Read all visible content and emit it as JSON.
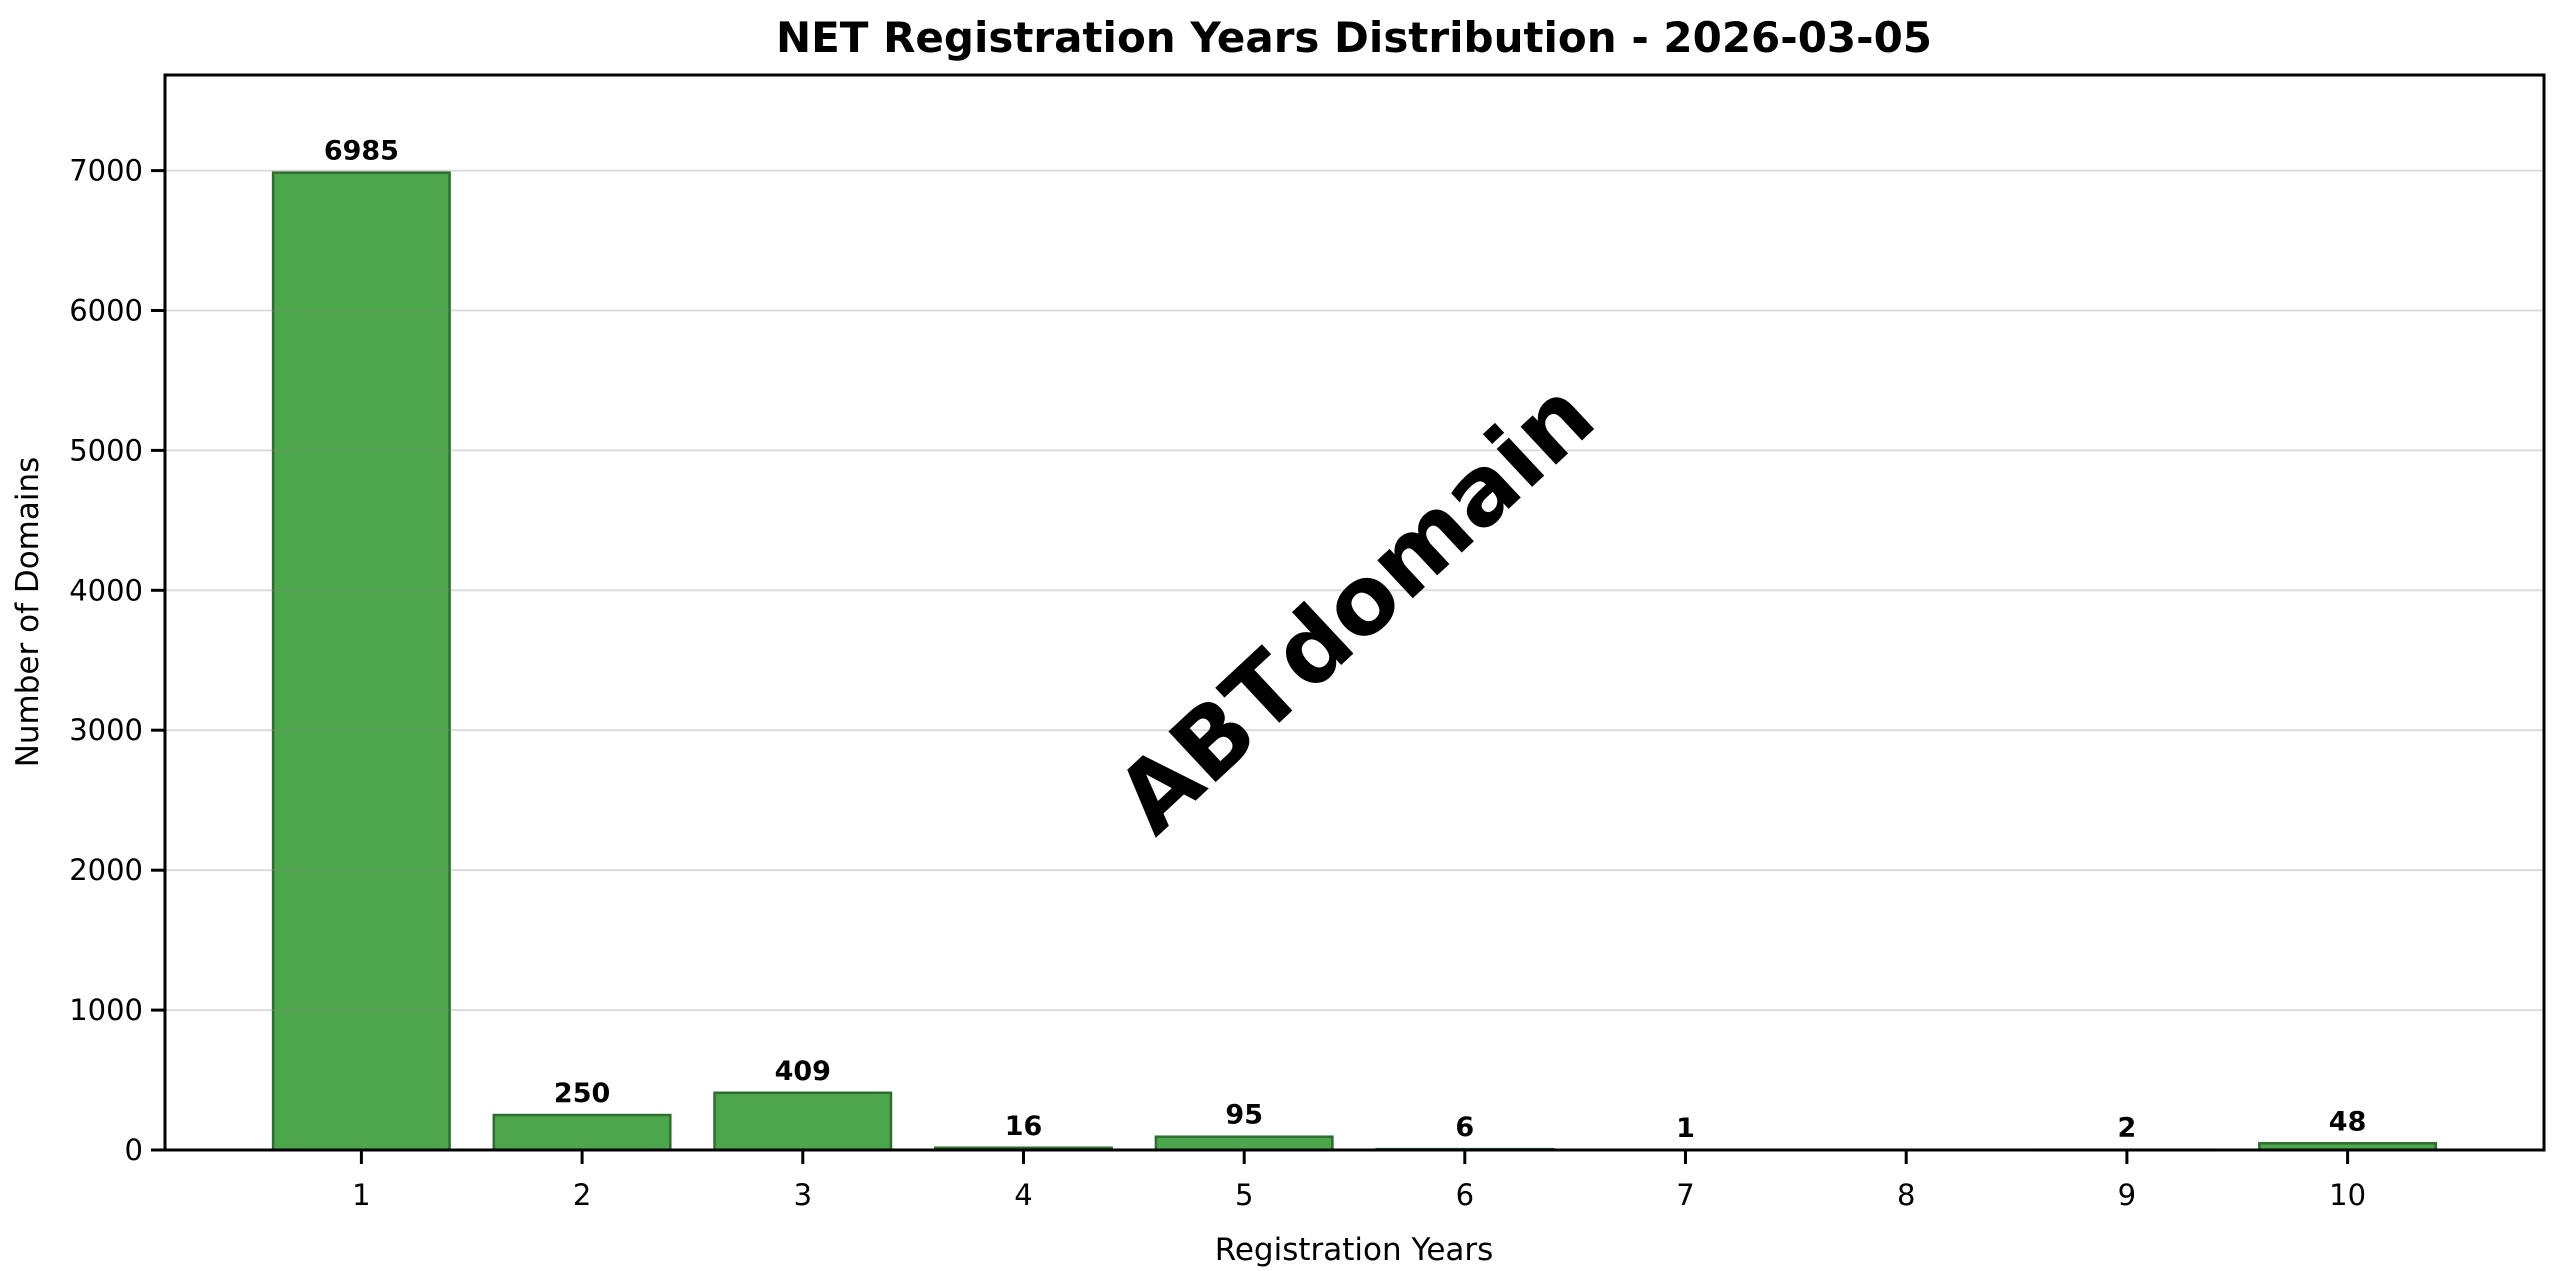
{
  "chart_data": {
    "type": "bar",
    "title": "NET Registration Years Distribution - 2026-03-05",
    "xlabel": "Registration Years",
    "ylabel": "Number of Domains",
    "categories": [
      "1",
      "2",
      "3",
      "4",
      "5",
      "6",
      "7",
      "8",
      "9",
      "10"
    ],
    "values": [
      6985,
      250,
      409,
      16,
      95,
      6,
      1,
      0,
      2,
      48
    ],
    "bar_labels": [
      "6985",
      "250",
      "409",
      "16",
      "95",
      "6",
      "1",
      "",
      "2",
      "48"
    ],
    "yticks": [
      0,
      1000,
      2000,
      3000,
      4000,
      5000,
      6000,
      7000
    ],
    "ylim": [
      0,
      7683
    ],
    "xlim": [
      0.11,
      10.89
    ],
    "grid": "horizontal",
    "legend": "none",
    "colors": {
      "bar_fill": "#4ca64c",
      "bar_edge": "#2e6e2e",
      "grid_color": "#808080",
      "grid_opacity": 0.3,
      "spine_color": "#000000",
      "background": "#ffffff",
      "watermark_color": "#dcdcdc"
    },
    "watermark": {
      "text": "ABTdomain",
      "color": "#dcdcdc",
      "rotation_deg": -43
    }
  }
}
